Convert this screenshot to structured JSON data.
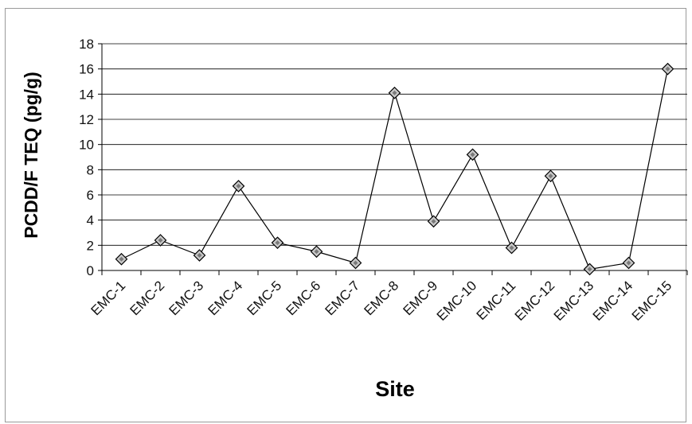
{
  "chart_data": {
    "type": "line",
    "categories": [
      "EMC-1",
      "EMC-2",
      "EMC-3",
      "EMC-4",
      "EMC-5",
      "EMC-6",
      "EMC-7",
      "EMC-8",
      "EMC-9",
      "EMC-10",
      "EMC-11",
      "EMC-12",
      "EMC-13",
      "EMC-14",
      "EMC-15"
    ],
    "series": [
      {
        "values": [
          0.9,
          2.4,
          1.2,
          6.7,
          2.2,
          1.5,
          0.6,
          14.1,
          3.9,
          9.2,
          1.8,
          7.5,
          0.1,
          0.6,
          16.0
        ]
      }
    ],
    "title": "",
    "xlabel": "Site",
    "ylabel": "PCDD/F TEQ (pg/g)",
    "ylim": [
      0,
      18
    ],
    "yticks": [
      0,
      2,
      4,
      6,
      8,
      10,
      12,
      14,
      16,
      18
    ],
    "grid": true,
    "legend": "none",
    "marker": "diamond",
    "colors": {
      "line": "#000000",
      "marker_fill": "#c8c8c8",
      "grid": "#000000"
    }
  }
}
